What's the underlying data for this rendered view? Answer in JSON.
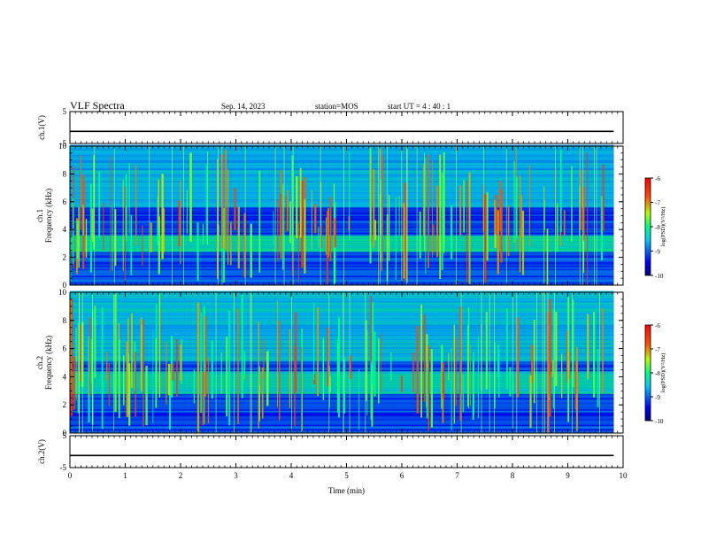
{
  "header": {
    "title": "VLF Spectra",
    "date": "Sep. 14, 2023",
    "station": "station=MOS",
    "start_ut": "start UT =   4 : 40 : 1"
  },
  "chart_data": [
    {
      "type": "line",
      "panel": "ch1-waveform",
      "ylabel": "ch.1(V)",
      "ylim": [
        -5,
        5
      ],
      "yticks": [
        "5",
        "-5"
      ],
      "series": [
        {
          "x": [
            0,
            9.83
          ],
          "y": [
            -1.2,
            -1.2
          ]
        }
      ]
    },
    {
      "type": "heatmap",
      "panel": "ch1-spectrogram",
      "ylabel": "ch.1\nFrequency (kHz)",
      "ylim": [
        0,
        10
      ],
      "yticks": [
        "0",
        "2",
        "4",
        "6",
        "8",
        "10"
      ],
      "xlim": [
        0,
        10
      ],
      "data_end_min": 9.83,
      "colorbar": {
        "label": "log(PSD)(V²/Hz)",
        "range": [
          -10,
          -6
        ],
        "ticks": [
          "-6",
          "-7",
          "-8",
          "-9",
          "-10"
        ]
      },
      "bands": [
        {
          "f_low": 2.4,
          "f_high": 3.6,
          "level": -8.2
        },
        {
          "f_low": 5.5,
          "f_high": 10,
          "level": -8.6
        }
      ]
    },
    {
      "type": "heatmap",
      "panel": "ch2-spectrogram",
      "ylabel": "ch.2\nFrequency (kHz)",
      "ylim": [
        0,
        10
      ],
      "yticks": [
        "0",
        "2",
        "4",
        "6",
        "8",
        "10"
      ],
      "xlim": [
        0,
        10
      ],
      "data_end_min": 9.83,
      "colorbar": {
        "label": "log(PSD)(V²/Hz)",
        "range": [
          -10,
          -6
        ],
        "ticks": [
          "-6",
          "-7",
          "-8",
          "-9",
          "-10"
        ]
      },
      "bands": [
        {
          "f_low": 2.8,
          "f_high": 4.4,
          "level": -8.3
        },
        {
          "f_low": 5.0,
          "f_high": 10,
          "level": -8.5
        }
      ]
    },
    {
      "type": "line",
      "panel": "ch2-waveform",
      "ylabel": "ch.2(V)",
      "ylim": [
        -5,
        5
      ],
      "yticks": [
        "5",
        "-5"
      ],
      "series": [
        {
          "x": [
            0,
            9.83
          ],
          "y": [
            -1.2,
            -1.2
          ]
        }
      ]
    }
  ],
  "xaxis": {
    "label": "Time (min)",
    "ticks": [
      "0",
      "1",
      "2",
      "3",
      "4",
      "5",
      "6",
      "7",
      "8",
      "9",
      "10"
    ]
  }
}
